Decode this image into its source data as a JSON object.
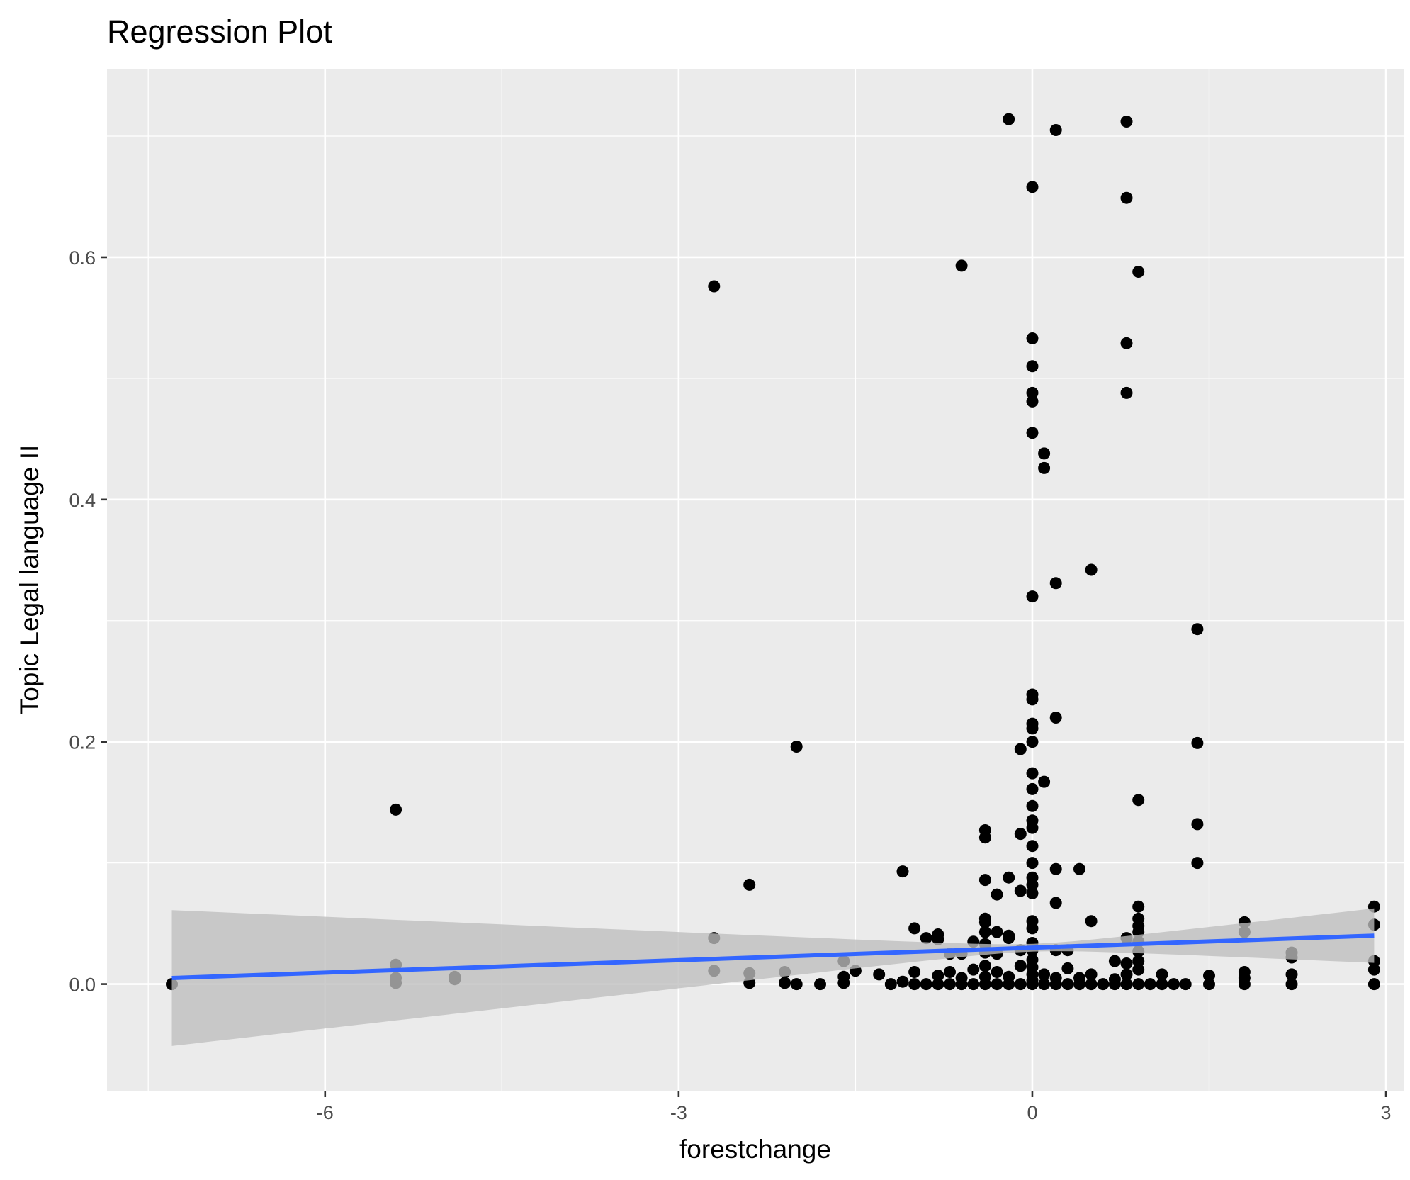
{
  "colors": {
    "panel": "#EBEBEB",
    "grid": "#FFFFFF",
    "points": "#000000",
    "fit_line": "#3366FF",
    "ribbon": "#BEBEBE"
  },
  "chart_data": {
    "type": "scatter",
    "title": "Regression Plot",
    "xlabel": "forestchange",
    "ylabel": "Topic Legal language II",
    "xlim": [
      -7.85,
      3.15
    ],
    "ylim": [
      -0.088,
      0.755
    ],
    "x_ticks": [
      {
        "value": -6,
        "label": "-6"
      },
      {
        "value": -3,
        "label": "-3"
      },
      {
        "value": 0,
        "label": "0"
      },
      {
        "value": 3,
        "label": "3"
      }
    ],
    "y_ticks": [
      {
        "value": 0.0,
        "label": "0.0"
      },
      {
        "value": 0.2,
        "label": "0.2"
      },
      {
        "value": 0.4,
        "label": "0.4"
      },
      {
        "value": 0.6,
        "label": "0.6"
      }
    ],
    "x_minor": [
      -7.5,
      -4.5,
      -1.5,
      1.5
    ],
    "y_minor": [
      0.1,
      0.3,
      0.5,
      0.7
    ],
    "grid": true,
    "legend": "none",
    "regression": {
      "method": "lm",
      "x_range": [
        -7.3,
        2.9
      ],
      "fit_start": 0.005,
      "fit_end": 0.04,
      "ci_lower_start": -0.049,
      "ci_upper_start": 0.062,
      "ci_lower_end": 0.02,
      "ci_upper_end": 0.062,
      "ci_center_x": 0.0
    },
    "points": [
      [
        -7.3,
        0.0
      ],
      [
        -5.4,
        0.144
      ],
      [
        -5.4,
        0.016
      ],
      [
        -5.4,
        0.005
      ],
      [
        -5.4,
        0.001
      ],
      [
        -4.9,
        0.006
      ],
      [
        -4.9,
        0.004
      ],
      [
        -2.7,
        0.576
      ],
      [
        -2.7,
        0.038
      ],
      [
        -2.7,
        0.011
      ],
      [
        -2.4,
        0.082
      ],
      [
        -2.4,
        0.009
      ],
      [
        -2.4,
        0.001
      ],
      [
        -2.1,
        0.01
      ],
      [
        -2.1,
        0.001
      ],
      [
        -2.0,
        0.196
      ],
      [
        -2.0,
        0.0
      ],
      [
        -1.8,
        0.0
      ],
      [
        -1.6,
        0.019
      ],
      [
        -1.6,
        0.006
      ],
      [
        -1.6,
        0.001
      ],
      [
        -1.5,
        0.011
      ],
      [
        -1.3,
        0.008
      ],
      [
        -1.2,
        0.0
      ],
      [
        -1.1,
        0.093
      ],
      [
        -1.1,
        0.002
      ],
      [
        -1.0,
        0.046
      ],
      [
        -1.0,
        0.01
      ],
      [
        -1.0,
        0.0
      ],
      [
        -0.9,
        0.038
      ],
      [
        -0.9,
        0.0
      ],
      [
        -0.8,
        0.041
      ],
      [
        -0.8,
        0.037
      ],
      [
        -0.8,
        0.007
      ],
      [
        -0.8,
        0.0
      ],
      [
        -0.7,
        0.025
      ],
      [
        -0.7,
        0.01
      ],
      [
        -0.7,
        0.0
      ],
      [
        -0.6,
        0.593
      ],
      [
        -0.6,
        0.025
      ],
      [
        -0.6,
        0.005
      ],
      [
        -0.6,
        0.0
      ],
      [
        -0.5,
        0.035
      ],
      [
        -0.5,
        0.012
      ],
      [
        -0.5,
        0.0
      ],
      [
        -0.4,
        0.127
      ],
      [
        -0.4,
        0.121
      ],
      [
        -0.4,
        0.086
      ],
      [
        -0.4,
        0.054
      ],
      [
        -0.4,
        0.051
      ],
      [
        -0.4,
        0.043
      ],
      [
        -0.4,
        0.033
      ],
      [
        -0.4,
        0.026
      ],
      [
        -0.4,
        0.015
      ],
      [
        -0.4,
        0.006
      ],
      [
        -0.4,
        0.0
      ],
      [
        -0.3,
        0.074
      ],
      [
        -0.3,
        0.043
      ],
      [
        -0.3,
        0.025
      ],
      [
        -0.3,
        0.01
      ],
      [
        -0.3,
        0.0
      ],
      [
        -0.2,
        0.714
      ],
      [
        -0.2,
        0.088
      ],
      [
        -0.2,
        0.04
      ],
      [
        -0.2,
        0.038
      ],
      [
        -0.2,
        0.006
      ],
      [
        -0.2,
        0.0
      ],
      [
        -0.1,
        0.194
      ],
      [
        -0.1,
        0.124
      ],
      [
        -0.1,
        0.077
      ],
      [
        -0.1,
        0.028
      ],
      [
        -0.1,
        0.015
      ],
      [
        -0.1,
        0.0
      ],
      [
        0.0,
        0.658
      ],
      [
        0.0,
        0.533
      ],
      [
        0.0,
        0.51
      ],
      [
        0.0,
        0.488
      ],
      [
        0.0,
        0.481
      ],
      [
        0.0,
        0.455
      ],
      [
        0.0,
        0.32
      ],
      [
        0.0,
        0.239
      ],
      [
        0.0,
        0.235
      ],
      [
        0.0,
        0.215
      ],
      [
        0.0,
        0.211
      ],
      [
        0.0,
        0.2
      ],
      [
        0.0,
        0.174
      ],
      [
        0.0,
        0.161
      ],
      [
        0.0,
        0.147
      ],
      [
        0.0,
        0.135
      ],
      [
        0.0,
        0.129
      ],
      [
        0.0,
        0.114
      ],
      [
        0.0,
        0.1
      ],
      [
        0.0,
        0.088
      ],
      [
        0.0,
        0.082
      ],
      [
        0.0,
        0.075
      ],
      [
        0.0,
        0.052
      ],
      [
        0.0,
        0.046
      ],
      [
        0.0,
        0.034
      ],
      [
        0.0,
        0.028
      ],
      [
        0.0,
        0.02
      ],
      [
        0.0,
        0.014
      ],
      [
        0.0,
        0.008
      ],
      [
        0.0,
        0.003
      ],
      [
        0.0,
        0.0
      ],
      [
        0.1,
        0.438
      ],
      [
        0.1,
        0.426
      ],
      [
        0.1,
        0.167
      ],
      [
        0.1,
        0.008
      ],
      [
        0.1,
        0.0
      ],
      [
        0.2,
        0.705
      ],
      [
        0.2,
        0.331
      ],
      [
        0.2,
        0.22
      ],
      [
        0.2,
        0.095
      ],
      [
        0.2,
        0.067
      ],
      [
        0.2,
        0.028
      ],
      [
        0.2,
        0.005
      ],
      [
        0.2,
        0.0
      ],
      [
        0.3,
        0.028
      ],
      [
        0.3,
        0.013
      ],
      [
        0.3,
        0.0
      ],
      [
        0.4,
        0.095
      ],
      [
        0.4,
        0.005
      ],
      [
        0.4,
        0.0
      ],
      [
        0.5,
        0.342
      ],
      [
        0.5,
        0.052
      ],
      [
        0.5,
        0.008
      ],
      [
        0.5,
        0.0
      ],
      [
        0.6,
        0.0
      ],
      [
        0.7,
        0.019
      ],
      [
        0.7,
        0.004
      ],
      [
        0.7,
        0.0
      ],
      [
        0.8,
        0.712
      ],
      [
        0.8,
        0.649
      ],
      [
        0.8,
        0.529
      ],
      [
        0.8,
        0.488
      ],
      [
        0.8,
        0.038
      ],
      [
        0.8,
        0.017
      ],
      [
        0.8,
        0.008
      ],
      [
        0.8,
        0.0
      ],
      [
        0.9,
        0.588
      ],
      [
        0.9,
        0.152
      ],
      [
        0.9,
        0.064
      ],
      [
        0.9,
        0.054
      ],
      [
        0.9,
        0.048
      ],
      [
        0.9,
        0.043
      ],
      [
        0.9,
        0.035
      ],
      [
        0.9,
        0.027
      ],
      [
        0.9,
        0.019
      ],
      [
        0.9,
        0.012
      ],
      [
        0.9,
        0.0
      ],
      [
        1.0,
        0.0
      ],
      [
        1.1,
        0.008
      ],
      [
        1.1,
        0.0
      ],
      [
        1.2,
        0.0
      ],
      [
        1.3,
        0.0
      ],
      [
        1.4,
        0.293
      ],
      [
        1.4,
        0.199
      ],
      [
        1.4,
        0.132
      ],
      [
        1.4,
        0.1
      ],
      [
        1.5,
        0.007
      ],
      [
        1.5,
        0.0
      ],
      [
        1.8,
        0.051
      ],
      [
        1.8,
        0.043
      ],
      [
        1.8,
        0.01
      ],
      [
        1.8,
        0.005
      ],
      [
        1.8,
        0.0
      ],
      [
        2.2,
        0.026
      ],
      [
        2.2,
        0.022
      ],
      [
        2.2,
        0.008
      ],
      [
        2.2,
        0.0
      ],
      [
        2.9,
        0.064
      ],
      [
        2.9,
        0.049
      ],
      [
        2.9,
        0.019
      ],
      [
        2.9,
        0.012
      ],
      [
        2.9,
        0.0
      ]
    ]
  }
}
